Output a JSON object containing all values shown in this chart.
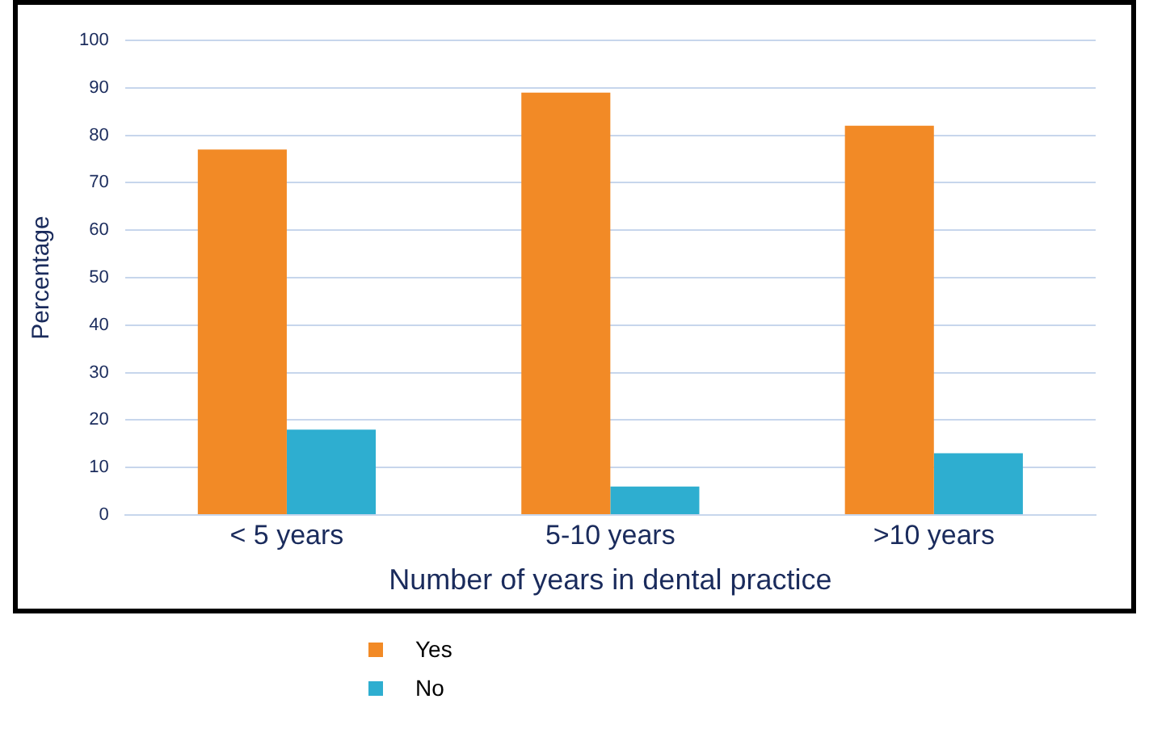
{
  "chart_data": {
    "type": "bar",
    "xlabel": "Number of years in dental practice",
    "ylabel": "Percentage",
    "categories": [
      "< 5 years",
      "5-10 years",
      ">10 years"
    ],
    "series": [
      {
        "name": "Yes",
        "color": "#f28a26",
        "values": [
          77,
          89,
          82
        ]
      },
      {
        "name": "No",
        "color": "#2eaed0",
        "values": [
          18,
          6,
          13
        ]
      }
    ],
    "ylim": [
      0,
      100
    ],
    "yticks": [
      0,
      10,
      20,
      30,
      40,
      50,
      60,
      70,
      80,
      90,
      100
    ],
    "grid": "y",
    "legend": "bottom"
  }
}
